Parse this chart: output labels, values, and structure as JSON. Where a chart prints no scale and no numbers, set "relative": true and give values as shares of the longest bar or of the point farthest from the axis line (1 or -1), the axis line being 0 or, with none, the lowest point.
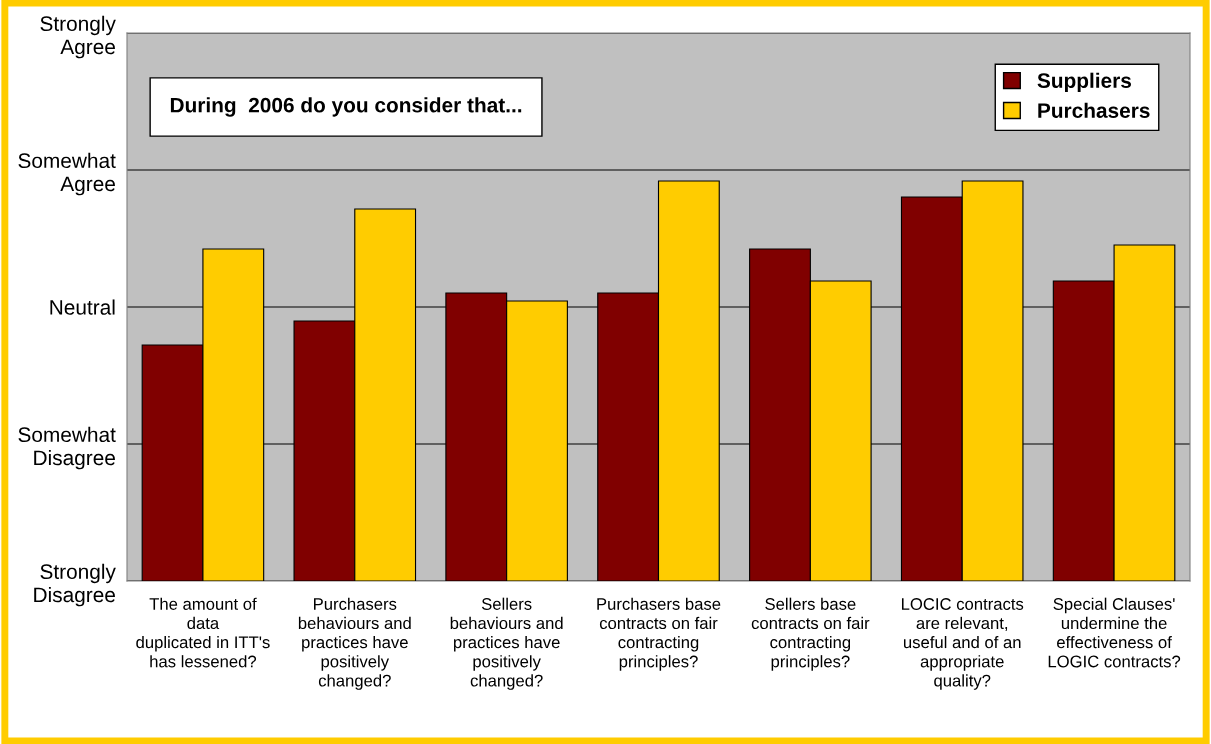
{
  "chart_data": {
    "type": "bar",
    "title": "During  2006 do you consider that...",
    "relative": true,
    "ylim": [
      0,
      1.37
    ],
    "categories": [
      "The amount of\ndata\nduplicated in ITT's\nhas lessened?",
      "Purchasers\nbehaviours and\npractices have\npositively\nchanged?",
      "Sellers\nbehaviours and\npractices have\npositively\nchanged?",
      "Purchasers base\ncontracts on fair\ncontracting\nprinciples?",
      "Sellers base\ncontracts on fair\ncontracting\nprinciples?",
      "LOCIC contracts\nare relevant,\nuseful and of an\nappropriate\nquality?",
      "Special Clauses'\nundermine the\neffectiveness of\nLOGIC contracts?"
    ],
    "series": [
      {
        "name": "Suppliers",
        "color": "#800000",
        "values": [
          0.59,
          0.65,
          0.72,
          0.72,
          0.83,
          0.96,
          0.75
        ]
      },
      {
        "name": "Purchasers",
        "color": "#ffcc00",
        "values": [
          0.83,
          0.93,
          0.7,
          1,
          0.75,
          1,
          0.84
        ]
      }
    ],
    "annotations": [
      "Strongly\nDisagree",
      "Somewhat\nDisagree",
      "Neutral",
      "Somewhat\nAgree",
      "Strongly\nAgree"
    ],
    "grid": "y",
    "legend": "top right"
  }
}
